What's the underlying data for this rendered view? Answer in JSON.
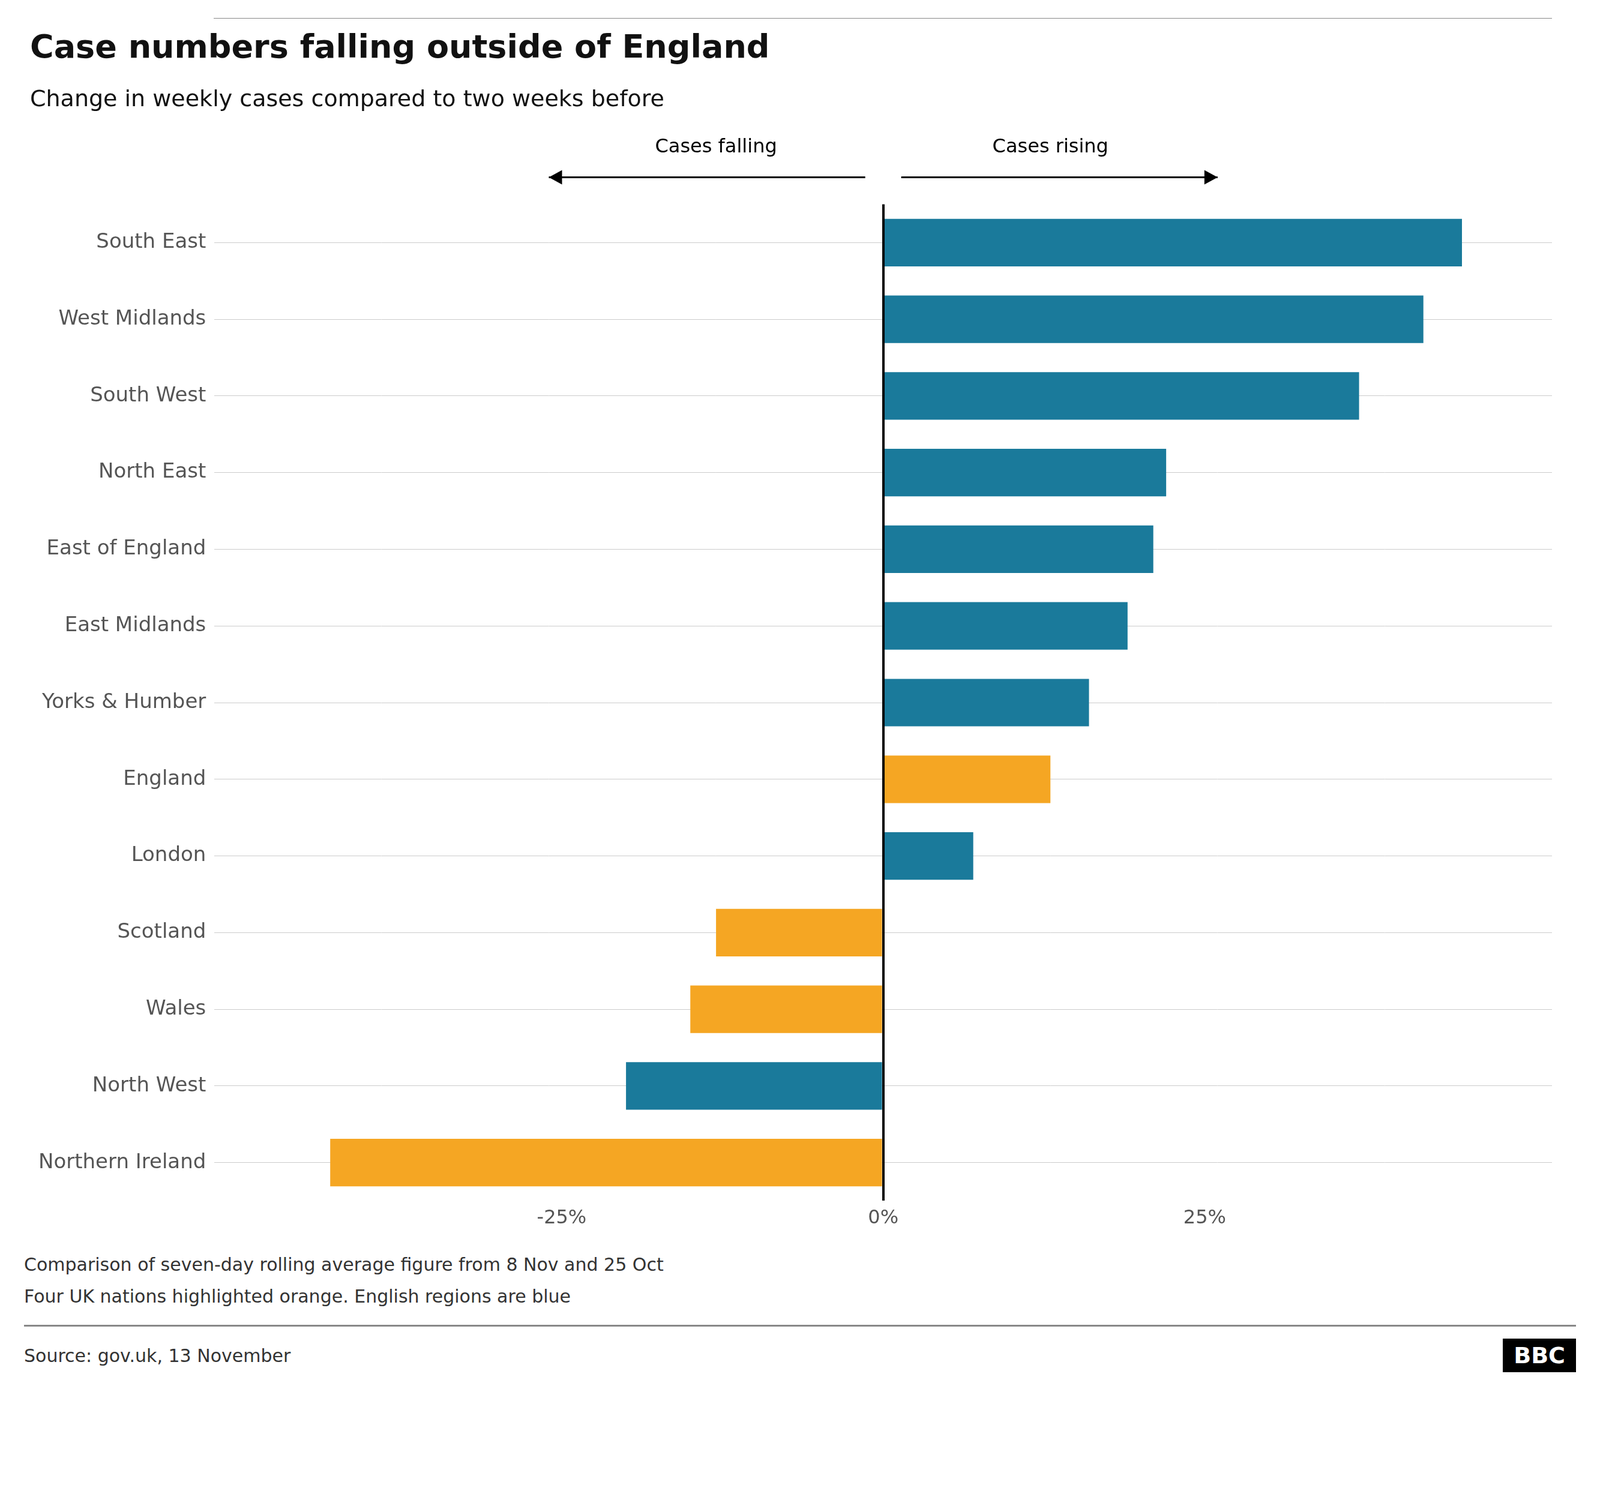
{
  "chart_data": {
    "type": "bar",
    "orientation": "horizontal",
    "title": "Case numbers falling outside of England",
    "subtitle": "Change in weekly cases compared to two weeks before",
    "categories": [
      "South East",
      "West Midlands",
      "South West",
      "North East",
      "East of England",
      "East Midlands",
      "Yorks & Humber",
      "England",
      "London",
      "Scotland",
      "Wales",
      "North West",
      "Northern Ireland"
    ],
    "values": [
      45,
      42,
      37,
      22,
      21,
      19,
      16,
      13,
      7,
      -13,
      -15,
      -20,
      -43
    ],
    "colors": [
      "#1a7a9b",
      "#1a7a9b",
      "#1a7a9b",
      "#1a7a9b",
      "#1a7a9b",
      "#1a7a9b",
      "#1a7a9b",
      "#f5a623",
      "#1a7a9b",
      "#f5a623",
      "#f5a623",
      "#1a7a9b",
      "#f5a623"
    ],
    "xlim": [
      -52,
      52
    ],
    "xticks": [
      {
        "value": -25,
        "label": "-25%"
      },
      {
        "value": 0,
        "label": "0%"
      },
      {
        "value": 25,
        "label": "25%"
      }
    ],
    "grid": true,
    "annotations": [
      "Cases falling",
      "Cases rising"
    ],
    "notes": [
      "Comparison of seven-day rolling average figure from 8 Nov and 25 Oct",
      "Four UK nations highlighted orange. English regions are blue"
    ],
    "source": "Source: gov.uk, 13 November",
    "logo": "BBC"
  }
}
